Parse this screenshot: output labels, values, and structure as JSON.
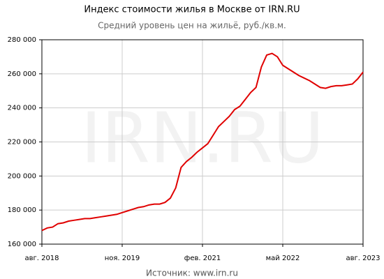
{
  "chart_data": {
    "type": "line",
    "title": "Индекс стоимости жилья в Москве от IRN.RU",
    "subtitle": "Средний уровень цен на жильё, руб./кв.м.",
    "watermark": "IRN.RU",
    "source": "Источник: www.irn.ru",
    "x": [
      "2018-08",
      "2018-09",
      "2018-10",
      "2018-11",
      "2018-12",
      "2019-01",
      "2019-02",
      "2019-03",
      "2019-04",
      "2019-05",
      "2019-06",
      "2019-07",
      "2019-08",
      "2019-09",
      "2019-10",
      "2019-11",
      "2019-12",
      "2020-01",
      "2020-02",
      "2020-03",
      "2020-04",
      "2020-05",
      "2020-06",
      "2020-07",
      "2020-08",
      "2020-09",
      "2020-10",
      "2020-11",
      "2020-12",
      "2021-01",
      "2021-02",
      "2021-03",
      "2021-04",
      "2021-05",
      "2021-06",
      "2021-07",
      "2021-08",
      "2021-09",
      "2021-10",
      "2021-11",
      "2021-12",
      "2022-01",
      "2022-02",
      "2022-03",
      "2022-04",
      "2022-05",
      "2022-06",
      "2022-07",
      "2022-08",
      "2022-09",
      "2022-10",
      "2022-11",
      "2022-12",
      "2023-01",
      "2023-02",
      "2023-03",
      "2023-04",
      "2023-05",
      "2023-06",
      "2023-07",
      "2023-08"
    ],
    "series": [
      {
        "color": "#e00000",
        "values": [
          168000,
          169500,
          170000,
          172000,
          172500,
          173500,
          174000,
          174500,
          175000,
          175000,
          175500,
          176000,
          176500,
          177000,
          177500,
          178500,
          179500,
          180500,
          181500,
          182000,
          183000,
          183500,
          183500,
          184500,
          187000,
          193000,
          205000,
          208500,
          211000,
          214000,
          216500,
          219000,
          224000,
          229000,
          232000,
          235000,
          239000,
          241000,
          245000,
          249000,
          252000,
          264000,
          271000,
          272000,
          270000,
          265000,
          263000,
          261000,
          259000,
          257500,
          256000,
          254000,
          252000,
          251500,
          252500,
          253000,
          253000,
          253500,
          254000,
          257000,
          261000
        ]
      }
    ],
    "xlim": [
      "2018-08",
      "2023-08"
    ],
    "xticks": [
      {
        "value": "2018-08",
        "label": "авг. 2018"
      },
      {
        "value": "2019-11",
        "label": "ноя. 2019"
      },
      {
        "value": "2021-02",
        "label": "фев. 2021"
      },
      {
        "value": "2022-05",
        "label": "май 2022"
      },
      {
        "value": "2023-08",
        "label": "авг. 2023"
      }
    ],
    "ylim": [
      160000,
      280000
    ],
    "yticks": [
      {
        "value": 160000,
        "label": "160 000"
      },
      {
        "value": 180000,
        "label": "180 000"
      },
      {
        "value": 200000,
        "label": "200 000"
      },
      {
        "value": 220000,
        "label": "220 000"
      },
      {
        "value": 240000,
        "label": "240 000"
      },
      {
        "value": 260000,
        "label": "260 000"
      },
      {
        "value": 280000,
        "label": "280 000"
      }
    ],
    "grid": true
  }
}
